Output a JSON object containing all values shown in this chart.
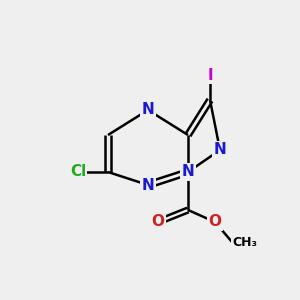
{
  "bg_color": "#efefef",
  "bond_color": "#000000",
  "bond_width": 1.8,
  "atom_colors": {
    "N": "#1a1acc",
    "Cl": "#22aa22",
    "I": "#cc00cc",
    "O": "#cc2222",
    "C": "#000000"
  }
}
